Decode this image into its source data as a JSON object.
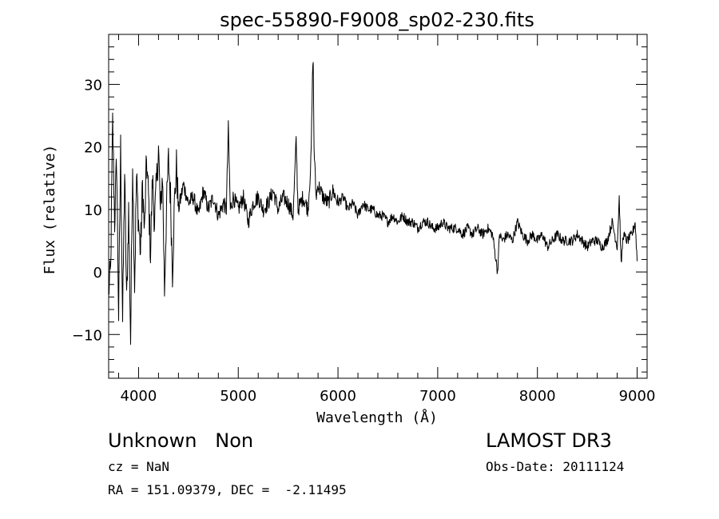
{
  "chart_data": {
    "type": "line",
    "title": "spec-55890-F9008_sp02-230.fits",
    "xlabel": "Wavelength (Å)",
    "ylabel": "Flux (relative)",
    "xlim": [
      3700,
      9100
    ],
    "ylim": [
      -17,
      38
    ],
    "xticks": [
      4000,
      5000,
      6000,
      7000,
      8000,
      9000
    ],
    "xtick_labels": [
      "4000",
      "5000",
      "6000",
      "7000",
      "8000",
      "9000"
    ],
    "yticks": [
      -10,
      0,
      10,
      20,
      30
    ],
    "ytick_labels": [
      "−10",
      "0",
      "10",
      "20",
      "30"
    ],
    "grid": false,
    "series": [
      {
        "name": "flux",
        "x": [
          3700,
          3720,
          3740,
          3760,
          3780,
          3800,
          3820,
          3840,
          3860,
          3880,
          3900,
          3920,
          3940,
          3960,
          3980,
          4000,
          4020,
          4040,
          4060,
          4080,
          4100,
          4120,
          4140,
          4160,
          4180,
          4200,
          4220,
          4240,
          4260,
          4280,
          4300,
          4320,
          4340,
          4360,
          4380,
          4400,
          4450,
          4500,
          4550,
          4600,
          4650,
          4700,
          4750,
          4800,
          4850,
          4880,
          4900,
          4920,
          4950,
          5000,
          5050,
          5100,
          5150,
          5200,
          5250,
          5300,
          5350,
          5400,
          5450,
          5500,
          5550,
          5580,
          5600,
          5650,
          5700,
          5730,
          5750,
          5760,
          5780,
          5800,
          5850,
          5900,
          5950,
          6000,
          6050,
          6100,
          6150,
          6200,
          6250,
          6300,
          6350,
          6400,
          6450,
          6500,
          6550,
          6600,
          6650,
          6700,
          6750,
          6800,
          6850,
          6900,
          6950,
          7000,
          7050,
          7100,
          7150,
          7200,
          7250,
          7300,
          7350,
          7400,
          7450,
          7500,
          7550,
          7600,
          7620,
          7650,
          7700,
          7750,
          7800,
          7850,
          7900,
          7950,
          8000,
          8050,
          8100,
          8150,
          8200,
          8250,
          8300,
          8350,
          8400,
          8450,
          8500,
          8550,
          8600,
          8650,
          8700,
          8750,
          8800,
          8820,
          8840,
          8860,
          8900,
          8950,
          8980,
          9000
        ],
        "y": [
          -3,
          0,
          24,
          8,
          18,
          -7,
          20,
          -8,
          16,
          -5,
          10,
          -11,
          18,
          -2,
          15,
          8,
          3,
          14,
          6,
          18,
          12,
          3,
          15,
          8,
          14,
          20,
          9,
          16,
          -3,
          10,
          18,
          12,
          0,
          11,
          17,
          10,
          14,
          11,
          12,
          9,
          13,
          10,
          12,
          9,
          11,
          10,
          23,
          10,
          12,
          10,
          12,
          8,
          11,
          12,
          10,
          11,
          13,
          10,
          12,
          11,
          9,
          21,
          10,
          12,
          10,
          18,
          36,
          20,
          12,
          14,
          12,
          11,
          13,
          11,
          12,
          10,
          11,
          9,
          11,
          10,
          10,
          9,
          9,
          8,
          9,
          8,
          9,
          8,
          8,
          7,
          8,
          8,
          7,
          7,
          8,
          7,
          7,
          7,
          6,
          7,
          6,
          7,
          6,
          7,
          6,
          0,
          6,
          5,
          6,
          5,
          8,
          6,
          5,
          6,
          5,
          6,
          4,
          5,
          6,
          5,
          5,
          5,
          6,
          5,
          4,
          5,
          5,
          4,
          5,
          8,
          4,
          12,
          1,
          6,
          5,
          6,
          8,
          2
        ]
      }
    ]
  },
  "info": {
    "class_text": "Unknown   Non",
    "survey": "LAMOST DR3",
    "cz_text": "cz = NaN",
    "obs_date_text": "Obs-Date: 20111124",
    "radec_text": "RA = 151.09379, DEC =  -2.11495"
  }
}
